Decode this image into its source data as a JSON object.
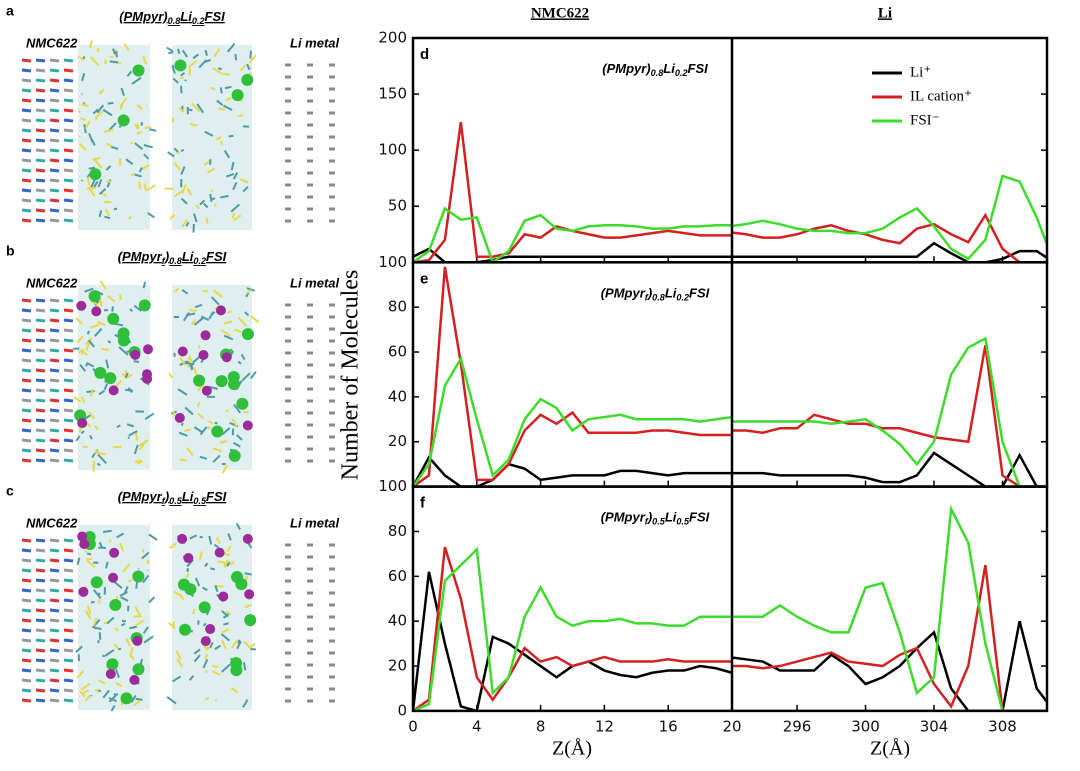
{
  "headers": [
    "NMC622",
    "Li"
  ],
  "ylabel": "Number of Molecules",
  "xlabel": "Z(Å)",
  "snapshots": [
    {
      "label": "a",
      "title": [
        "(PMpyr)",
        "0.8",
        "Li",
        "0.2",
        "FSI"
      ],
      "left": "NMC622",
      "right": "Li metal"
    },
    {
      "label": "b",
      "title": [
        "(PMpyr",
        "f",
        ")",
        "0.8",
        "Li",
        "0.2",
        "FSI"
      ],
      "left": "NMC622",
      "right": "Li metal"
    },
    {
      "label": "c",
      "title": [
        "(PMpyr",
        "f",
        ")",
        "0.5",
        "Li",
        "0.5",
        "FSI"
      ],
      "left": "NMC622",
      "right": "Li metal"
    }
  ],
  "chart_data": [
    {
      "type": "line",
      "label": "d",
      "title": [
        "(PMpyr)",
        "0.8",
        "Li",
        "0.2",
        "FSI"
      ],
      "ylim": [
        0,
        200
      ],
      "yticks": [
        50,
        100,
        150,
        200
      ],
      "xlim": [
        0,
        20
      ],
      "xticks": [
        0,
        4,
        8,
        12,
        16,
        20
      ],
      "x2lim": [
        292.2,
        310.6
      ],
      "x2ticks": [
        296,
        300,
        304,
        308
      ],
      "x": [
        0,
        1,
        2,
        3,
        4,
        5,
        6,
        7,
        8,
        9,
        10,
        11,
        12,
        13,
        14,
        15,
        16,
        17,
        18,
        19,
        20
      ],
      "x2": [
        292,
        293,
        294,
        295,
        296,
        297,
        298,
        299,
        300,
        301,
        302,
        303,
        304,
        305,
        306,
        307,
        308,
        309,
        310,
        311
      ],
      "series": [
        {
          "name": "Li⁺",
          "color": "#000000",
          "values": [
            5,
            12,
            0,
            0,
            0,
            2,
            5,
            5,
            5,
            5,
            5,
            5,
            5,
            5,
            5,
            5,
            5,
            5,
            5,
            5,
            5
          ],
          "values2": [
            5,
            5,
            5,
            5,
            5,
            5,
            5,
            5,
            5,
            5,
            5,
            5,
            17,
            8,
            0,
            0,
            3,
            10,
            10,
            0
          ]
        },
        {
          "name": "IL cation⁺",
          "color": "#d42020",
          "values": [
            0,
            2,
            20,
            125,
            5,
            5,
            8,
            25,
            22,
            32,
            28,
            25,
            22,
            22,
            24,
            26,
            28,
            26,
            24,
            24,
            24
          ],
          "values2": [
            27,
            25,
            22,
            22,
            25,
            30,
            33,
            28,
            25,
            20,
            17,
            30,
            34,
            25,
            18,
            42,
            12,
            0,
            0,
            0
          ]
        },
        {
          "name": "FSI⁻",
          "color": "#3ddc2a",
          "values": [
            0,
            10,
            48,
            38,
            40,
            0,
            10,
            37,
            42,
            30,
            28,
            32,
            33,
            33,
            32,
            30,
            30,
            32,
            32,
            33,
            33
          ],
          "values2": [
            32,
            34,
            37,
            34,
            30,
            28,
            28,
            26,
            26,
            30,
            40,
            48,
            32,
            12,
            3,
            20,
            77,
            72,
            40,
            0
          ]
        }
      ]
    },
    {
      "type": "line",
      "label": "e",
      "title": [
        "(PMpyr",
        "f",
        ")",
        "0.8",
        "Li",
        "0.2",
        "FSI"
      ],
      "ylim": [
        0,
        100
      ],
      "yticks": [
        20,
        40,
        60,
        80,
        100
      ],
      "xlim": [
        0,
        20
      ],
      "xticks": [
        0,
        4,
        8,
        12,
        16,
        20
      ],
      "x2lim": [
        292.2,
        310.6
      ],
      "x2ticks": [
        296,
        300,
        304,
        308
      ],
      "x": [
        0,
        1,
        2,
        3,
        4,
        5,
        6,
        7,
        8,
        9,
        10,
        11,
        12,
        13,
        14,
        15,
        16,
        17,
        18,
        19,
        20
      ],
      "x2": [
        292,
        293,
        294,
        295,
        296,
        297,
        298,
        299,
        300,
        301,
        302,
        303,
        304,
        305,
        306,
        307,
        308,
        309,
        310,
        311
      ],
      "series": [
        {
          "color": "#000000",
          "values": [
            0,
            13,
            5,
            0,
            0,
            3,
            10,
            8,
            3,
            4,
            5,
            5,
            5,
            7,
            7,
            6,
            5,
            6,
            6,
            6,
            6
          ],
          "values2": [
            6,
            6,
            6,
            5,
            5,
            5,
            5,
            5,
            4,
            2,
            2,
            5,
            15,
            10,
            5,
            0,
            0,
            14,
            0,
            0
          ]
        },
        {
          "color": "#d42020",
          "values": [
            0,
            5,
            98,
            55,
            3,
            3,
            10,
            25,
            32,
            28,
            33,
            24,
            24,
            24,
            24,
            25,
            25,
            24,
            23,
            23,
            23
          ],
          "values2": [
            25,
            25,
            24,
            26,
            26,
            32,
            30,
            28,
            28,
            26,
            26,
            24,
            22,
            21,
            20,
            63,
            5,
            0,
            0,
            0
          ]
        },
        {
          "color": "#3ddc2a",
          "values": [
            0,
            10,
            45,
            57,
            30,
            5,
            12,
            30,
            39,
            35,
            25,
            30,
            31,
            32,
            30,
            30,
            30,
            30,
            29,
            30,
            31
          ],
          "values2": [
            29,
            29,
            29,
            29,
            29,
            29,
            28,
            29,
            30,
            25,
            19,
            10,
            20,
            50,
            62,
            66,
            20,
            0,
            0,
            0
          ]
        }
      ]
    },
    {
      "type": "line",
      "label": "f",
      "title": [
        "(PMpyr",
        "f",
        ")",
        "0.5",
        "Li",
        "0.5",
        "FSI"
      ],
      "ylim": [
        0,
        100
      ],
      "yticks": [
        0,
        20,
        40,
        60,
        80,
        100
      ],
      "xlim": [
        0,
        20
      ],
      "xticks": [
        0,
        4,
        8,
        12,
        16,
        20
      ],
      "x2lim": [
        292.2,
        310.6
      ],
      "x2ticks": [
        296,
        300,
        304,
        308
      ],
      "x": [
        0,
        1,
        2,
        3,
        4,
        5,
        6,
        7,
        8,
        9,
        10,
        11,
        12,
        13,
        14,
        15,
        16,
        17,
        18,
        19,
        20
      ],
      "x2": [
        292,
        293,
        294,
        295,
        296,
        297,
        298,
        299,
        300,
        301,
        302,
        303,
        304,
        305,
        306,
        307,
        308,
        309,
        310,
        311
      ],
      "series": [
        {
          "color": "#000000",
          "values": [
            0,
            62,
            30,
            2,
            0,
            33,
            30,
            25,
            20,
            15,
            20,
            22,
            18,
            16,
            15,
            17,
            18,
            18,
            20,
            19,
            17
          ],
          "values2": [
            24,
            23,
            22,
            18,
            18,
            18,
            25,
            20,
            12,
            15,
            20,
            28,
            35,
            10,
            0,
            0,
            0,
            40,
            10,
            0
          ]
        },
        {
          "color": "#d42020",
          "values": [
            0,
            5,
            73,
            50,
            15,
            5,
            15,
            28,
            22,
            24,
            20,
            22,
            24,
            22,
            22,
            22,
            23,
            22,
            22,
            22,
            22
          ],
          "values2": [
            20,
            20,
            19,
            20,
            22,
            24,
            26,
            22,
            21,
            20,
            25,
            28,
            12,
            2,
            20,
            65,
            0,
            0,
            0,
            0
          ]
        },
        {
          "color": "#3ddc2a",
          "values": [
            0,
            3,
            58,
            65,
            72,
            8,
            15,
            42,
            55,
            42,
            38,
            40,
            40,
            41,
            39,
            39,
            38,
            38,
            42,
            42,
            42
          ],
          "values2": [
            42,
            42,
            42,
            47,
            42,
            38,
            35,
            35,
            55,
            57,
            35,
            8,
            15,
            90,
            75,
            30,
            0,
            0,
            0,
            0
          ]
        }
      ]
    }
  ]
}
